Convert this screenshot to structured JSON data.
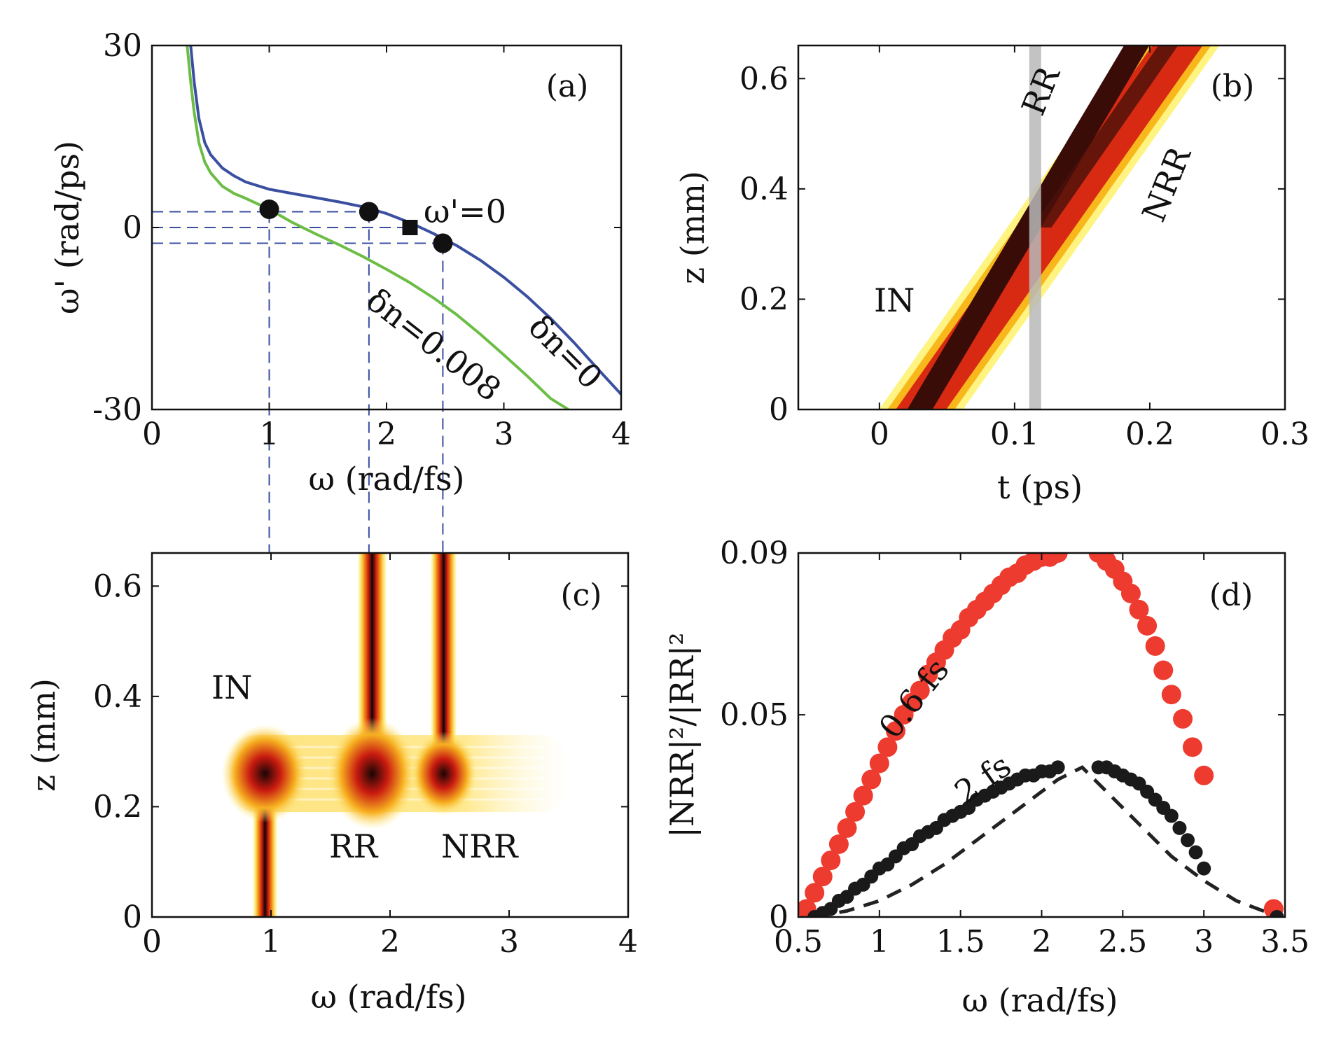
{
  "chart_data": [
    {
      "panel": "(a)",
      "type": "line",
      "xlabel": "ω (rad/fs)",
      "ylabel": "ω' (rad/ps)",
      "xlim": [
        0,
        4
      ],
      "ylim": [
        -30,
        30
      ],
      "xticks": [
        "0",
        "1",
        "2",
        "3",
        "4"
      ],
      "yticks": [
        "30",
        "0",
        "-30"
      ],
      "colors": {
        "blue": "#3a4fa0",
        "green": "#6cbd45",
        "dash": "#3a4fa0"
      },
      "series": [
        {
          "name": "δn=0",
          "x": [
            0.33,
            0.36,
            0.4,
            0.45,
            0.5,
            0.6,
            0.7,
            0.8,
            1.0,
            1.2,
            1.4,
            1.6,
            1.8,
            2.0,
            2.2,
            2.4,
            2.6,
            2.8,
            3.0,
            3.2,
            3.4,
            3.6,
            3.8,
            4.0
          ],
          "y": [
            30,
            24,
            18,
            14,
            12,
            9.8,
            8.5,
            7.5,
            6.3,
            5.6,
            4.9,
            4.2,
            3.4,
            2.3,
            0.8,
            -1.0,
            -3.0,
            -5.4,
            -8.2,
            -11.4,
            -15.0,
            -19.0,
            -23.3,
            -27.5
          ]
        },
        {
          "name": "δn=0.008",
          "x": [
            0.3,
            0.33,
            0.36,
            0.4,
            0.45,
            0.5,
            0.6,
            0.7,
            0.8,
            1.0,
            1.2,
            1.4,
            1.6,
            1.8,
            2.0,
            2.2,
            2.4,
            2.6,
            2.8,
            3.0,
            3.2,
            3.4,
            3.55
          ],
          "y": [
            30,
            24,
            19,
            14,
            10.8,
            9.0,
            6.8,
            5.6,
            4.8,
            3.0,
            0.8,
            -1.1,
            -2.9,
            -4.8,
            -6.9,
            -9.1,
            -11.6,
            -14.4,
            -17.6,
            -21.0,
            -24.5,
            -28.2,
            -30
          ]
        }
      ],
      "markers": [
        {
          "shape": "circle",
          "x": 1.0,
          "y": 3.0
        },
        {
          "shape": "circle",
          "x": 1.85,
          "y": 2.6
        },
        {
          "shape": "square",
          "x": 2.2,
          "y": 0.0
        },
        {
          "shape": "circle",
          "x": 2.48,
          "y": -2.6
        }
      ],
      "guides_y": [
        2.6,
        0.0,
        -2.6
      ],
      "guides_x": [
        {
          "x": 1.0,
          "y": 2.6
        },
        {
          "x": 1.85,
          "y": 2.6
        },
        {
          "x": 2.48,
          "y": -2.6
        }
      ],
      "annotations": {
        "omega_zero": "ω'=0",
        "dn0": "δn=0",
        "dn008": "δn=0.008"
      }
    },
    {
      "panel": "(b)",
      "type": "heatmap",
      "xlabel": "t (ps)",
      "ylabel": "z (mm)",
      "xlim": [
        -0.06,
        0.3
      ],
      "ylim": [
        0,
        0.66
      ],
      "xticks": [
        "0",
        "0.1",
        "0.2",
        "0.3"
      ],
      "yticks": [
        "0",
        "0.2",
        "0.4",
        "0.6"
      ],
      "bands": [
        {
          "t_start": 0.025,
          "z_start": 0.0,
          "t_end": 0.18,
          "z_end": 0.66
        },
        {
          "t_start": 0.025,
          "z_start": 0.0,
          "t_end": 0.205,
          "z_end": 0.66
        }
      ],
      "gray_bar_t": 0.115,
      "labels": {
        "in": "IN",
        "rr": "RR",
        "nrr": "NRR"
      }
    },
    {
      "panel": "(c)",
      "type": "heatmap",
      "xlabel": "ω (rad/fs)",
      "ylabel": "z (mm)",
      "xlim": [
        0,
        4
      ],
      "ylim": [
        0,
        0.66
      ],
      "xticks": [
        "0",
        "1",
        "2",
        "3",
        "4"
      ],
      "yticks": [
        "0",
        "0.2",
        "0.4",
        "0.6"
      ],
      "stripes": [
        {
          "omega": 0.95,
          "z_from": 0.0,
          "z_to": 0.3
        },
        {
          "omega": 1.85,
          "z_from": 0.22,
          "z_to": 0.66
        },
        {
          "omega": 2.45,
          "z_from": 0.24,
          "z_to": 0.66
        }
      ],
      "spread_band": {
        "z": 0.26,
        "omega_from": 0.65,
        "omega_to": 3.5
      },
      "labels": {
        "in": "IN",
        "rr": "RR",
        "nrr": "NRR"
      }
    },
    {
      "panel": "(d)",
      "type": "scatter",
      "xlabel": "ω (rad/fs)",
      "ylabel": "|NRR|²/|RR|²",
      "xlim": [
        0.5,
        3.5
      ],
      "ylim": [
        0,
        0.09
      ],
      "xticks": [
        "0.5",
        "1",
        "1.5",
        "2",
        "2.5",
        "3",
        "3.5"
      ],
      "yticks": [
        "0",
        "0.05",
        "0.09"
      ],
      "series": [
        {
          "name": "0.6 fs",
          "color": "#ee3b2f",
          "x": [
            0.55,
            0.6,
            0.65,
            0.7,
            0.75,
            0.8,
            0.85,
            0.9,
            0.95,
            1.0,
            1.05,
            1.1,
            1.15,
            1.2,
            1.25,
            1.3,
            1.35,
            1.4,
            1.45,
            1.5,
            1.55,
            1.6,
            1.65,
            1.7,
            1.75,
            1.8,
            1.85,
            1.9,
            1.95,
            2.0,
            2.05,
            2.1,
            2.35,
            2.4,
            2.45,
            2.5,
            2.55,
            2.6,
            2.65,
            2.7,
            2.75,
            2.8,
            2.87,
            2.93,
            3.0,
            3.43
          ],
          "y": [
            0.002,
            0.006,
            0.01,
            0.014,
            0.018,
            0.022,
            0.026,
            0.03,
            0.034,
            0.038,
            0.042,
            0.046,
            0.05,
            0.053,
            0.056,
            0.06,
            0.063,
            0.066,
            0.069,
            0.071,
            0.074,
            0.076,
            0.078,
            0.08,
            0.082,
            0.084,
            0.085,
            0.087,
            0.088,
            0.089,
            0.089,
            0.09,
            0.09,
            0.088,
            0.086,
            0.083,
            0.08,
            0.076,
            0.072,
            0.067,
            0.061,
            0.055,
            0.049,
            0.042,
            0.035,
            0.002
          ]
        },
        {
          "name": "2 fs",
          "color": "#1a1a1a",
          "x": [
            0.6,
            0.65,
            0.7,
            0.75,
            0.8,
            0.85,
            0.9,
            0.95,
            1.0,
            1.05,
            1.1,
            1.15,
            1.2,
            1.25,
            1.3,
            1.35,
            1.4,
            1.45,
            1.5,
            1.55,
            1.6,
            1.65,
            1.7,
            1.75,
            1.8,
            1.85,
            1.9,
            1.95,
            2.0,
            2.05,
            2.1,
            2.35,
            2.4,
            2.45,
            2.5,
            2.55,
            2.6,
            2.65,
            2.7,
            2.75,
            2.8,
            2.85,
            2.9,
            2.95,
            3.0,
            3.45
          ],
          "y": [
            0.0,
            0.001,
            0.002,
            0.004,
            0.005,
            0.007,
            0.008,
            0.01,
            0.012,
            0.013,
            0.015,
            0.017,
            0.018,
            0.02,
            0.021,
            0.022,
            0.024,
            0.025,
            0.026,
            0.027,
            0.029,
            0.03,
            0.031,
            0.032,
            0.033,
            0.034,
            0.035,
            0.035,
            0.036,
            0.036,
            0.037,
            0.037,
            0.037,
            0.036,
            0.035,
            0.034,
            0.033,
            0.031,
            0.029,
            0.027,
            0.025,
            0.022,
            0.019,
            0.016,
            0.012,
            0.0
          ]
        },
        {
          "name": "dashed",
          "color": "#222222",
          "style": "dashed",
          "x": [
            0.6,
            0.8,
            1.0,
            1.2,
            1.4,
            1.6,
            1.8,
            2.0,
            2.1,
            2.25,
            2.4,
            2.6,
            2.8,
            3.0,
            3.2,
            3.4,
            3.45
          ],
          "y": [
            0.0,
            0.0015,
            0.004,
            0.008,
            0.013,
            0.019,
            0.025,
            0.031,
            0.034,
            0.037,
            0.031,
            0.023,
            0.015,
            0.009,
            0.004,
            0.001,
            0.0
          ]
        }
      ],
      "labels": {
        "s06": "0.6 fs",
        "s2": "2 fs"
      }
    }
  ]
}
